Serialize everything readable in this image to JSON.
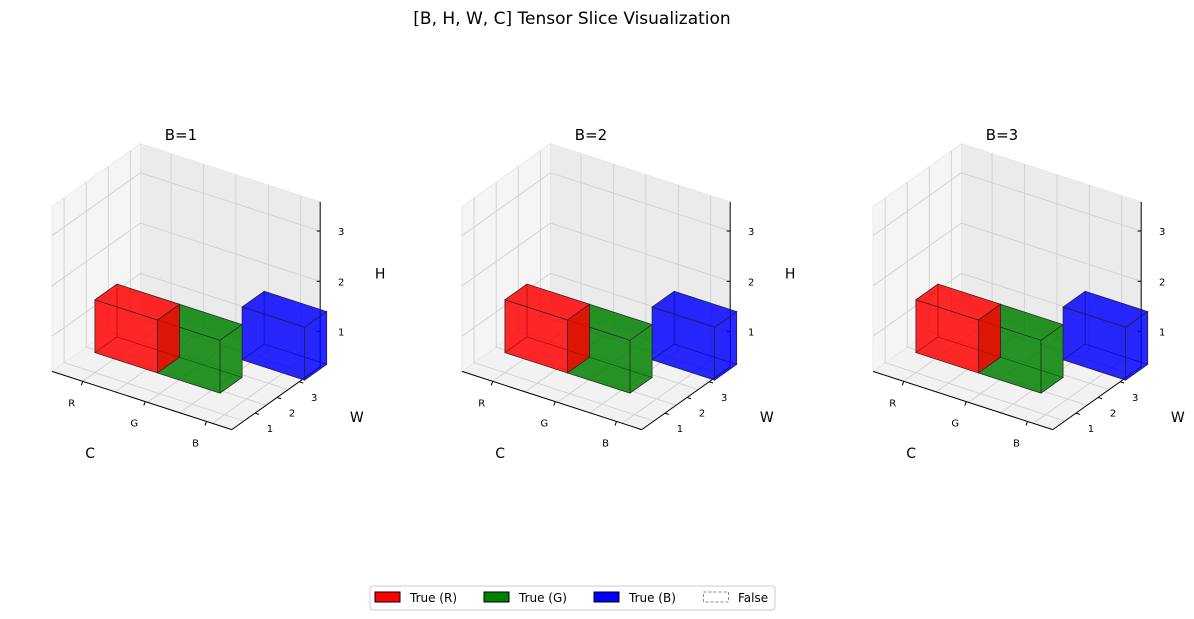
{
  "title": "[B, H, W, C] Tensor Slice Visualization",
  "colors": {
    "R": "#ff0000",
    "G": "#008000",
    "B": "#0000ff"
  },
  "legend": [
    {
      "label": "True (R)",
      "color": "#ff0000",
      "style": "solid"
    },
    {
      "label": "True (G)",
      "color": "#008000",
      "style": "solid"
    },
    {
      "label": "True (B)",
      "color": "#0000ff",
      "style": "solid"
    },
    {
      "label": "False",
      "color": "none",
      "style": "dashed"
    }
  ],
  "chart_data": [
    {
      "type": "3d-voxel",
      "title": "B=1",
      "xlabel": "C",
      "ylabel": "W",
      "zlabel": "H",
      "x_ticks": [
        "R",
        "G",
        "B"
      ],
      "y_ticks": [
        "1",
        "2",
        "3"
      ],
      "z_ticks": [
        "1",
        "2",
        "3"
      ],
      "voxels": [
        {
          "C": "R",
          "H": 1,
          "W": 1,
          "value": true
        },
        {
          "C": "G",
          "H": 1,
          "W": 1,
          "value": true
        },
        {
          "C": "B",
          "H": 2,
          "W": 2,
          "value": true
        }
      ]
    },
    {
      "type": "3d-voxel",
      "title": "B=2",
      "xlabel": "C",
      "ylabel": "W",
      "zlabel": "H",
      "x_ticks": [
        "R",
        "G",
        "B"
      ],
      "y_ticks": [
        "1",
        "2",
        "3"
      ],
      "z_ticks": [
        "1",
        "2",
        "3"
      ],
      "voxels": [
        {
          "C": "R",
          "H": 1,
          "W": 1,
          "value": true
        },
        {
          "C": "G",
          "H": 1,
          "W": 1,
          "value": true
        },
        {
          "C": "B",
          "H": 2,
          "W": 2,
          "value": true
        }
      ]
    },
    {
      "type": "3d-voxel",
      "title": "B=3",
      "xlabel": "C",
      "ylabel": "W",
      "zlabel": "H",
      "x_ticks": [
        "R",
        "G",
        "B"
      ],
      "y_ticks": [
        "1",
        "2",
        "3"
      ],
      "z_ticks": [
        "1",
        "2",
        "3"
      ],
      "voxels": [
        {
          "C": "R",
          "H": 1,
          "W": 1,
          "value": true
        },
        {
          "C": "G",
          "H": 1,
          "W": 1,
          "value": true
        },
        {
          "C": "B",
          "H": 2,
          "W": 2,
          "value": true
        }
      ]
    }
  ]
}
